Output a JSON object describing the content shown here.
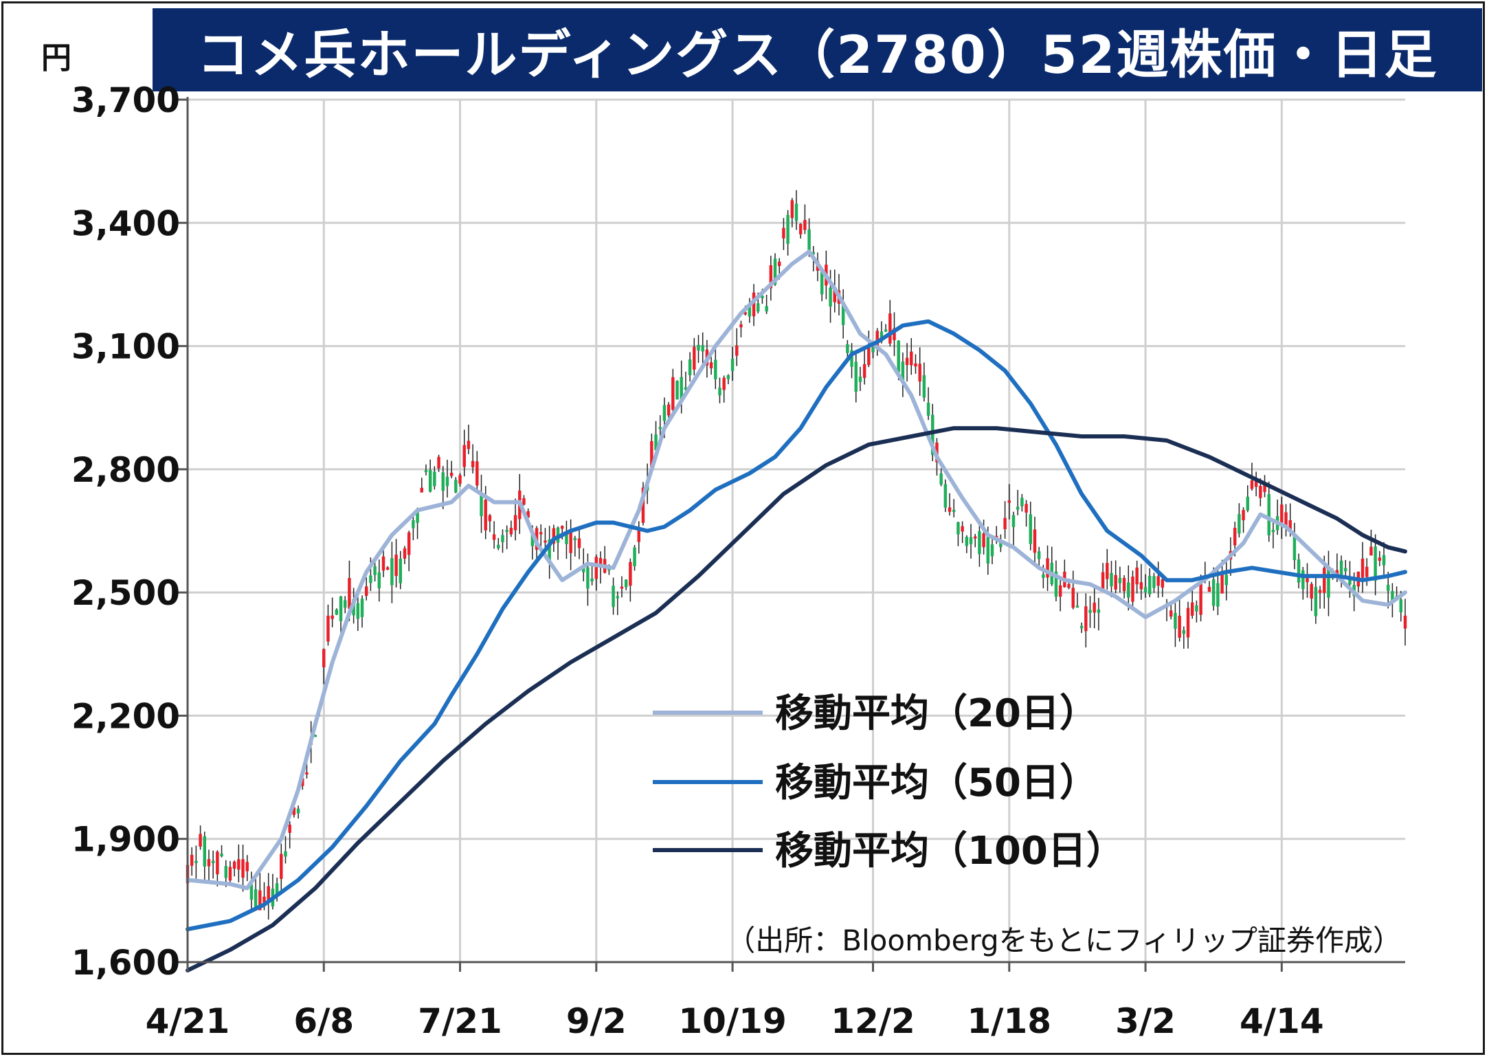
{
  "title": "コメ兵ホールディングス（2780）52週株価・日足",
  "unit": "円",
  "source_note": "（出所：Bloombergをもとにフィリップ証券作成）",
  "colors": {
    "title_bg": "#0a2a6c",
    "candle_up": "#e8202a",
    "candle_down": "#1fae5a",
    "ma20": "#9db4d8",
    "ma50": "#1f6fc0",
    "ma100": "#1b2f55",
    "grid": "#cfcfcf"
  },
  "chart_data": {
    "type": "candlestick",
    "ylim": [
      1600,
      3700
    ],
    "yticks": [
      1600,
      1900,
      2200,
      2500,
      2800,
      3100,
      3400,
      3700
    ],
    "ytick_labels": [
      "1,600",
      "1,900",
      "2,200",
      "2,500",
      "2,800",
      "3,100",
      "3,400",
      "3,700"
    ],
    "xticks": [
      0,
      32,
      64,
      96,
      128,
      161,
      193,
      225,
      257
    ],
    "xtick_labels": [
      "4/21",
      "6/8",
      "7/21",
      "9/2",
      "10/19",
      "12/2",
      "1/18",
      "3/2",
      "4/14"
    ],
    "legend_position": "center-right",
    "series": [
      {
        "name": "移動平均（20日）",
        "anchors": [
          [
            0,
            1800
          ],
          [
            10,
            1790
          ],
          [
            14,
            1780
          ],
          [
            22,
            1900
          ],
          [
            26,
            2020
          ],
          [
            30,
            2180
          ],
          [
            34,
            2330
          ],
          [
            38,
            2450
          ],
          [
            42,
            2550
          ],
          [
            48,
            2640
          ],
          [
            54,
            2700
          ],
          [
            62,
            2720
          ],
          [
            66,
            2760
          ],
          [
            72,
            2720
          ],
          [
            78,
            2720
          ],
          [
            82,
            2620
          ],
          [
            88,
            2530
          ],
          [
            94,
            2570
          ],
          [
            100,
            2560
          ],
          [
            106,
            2700
          ],
          [
            112,
            2900
          ],
          [
            118,
            3000
          ],
          [
            124,
            3100
          ],
          [
            130,
            3180
          ],
          [
            136,
            3240
          ],
          [
            142,
            3300
          ],
          [
            146,
            3330
          ],
          [
            152,
            3240
          ],
          [
            158,
            3130
          ],
          [
            164,
            3080
          ],
          [
            170,
            2980
          ],
          [
            176,
            2830
          ],
          [
            182,
            2730
          ],
          [
            188,
            2640
          ],
          [
            194,
            2610
          ],
          [
            200,
            2560
          ],
          [
            206,
            2530
          ],
          [
            212,
            2520
          ],
          [
            218,
            2490
          ],
          [
            225,
            2440
          ],
          [
            232,
            2480
          ],
          [
            240,
            2540
          ],
          [
            248,
            2620
          ],
          [
            252,
            2690
          ],
          [
            258,
            2660
          ],
          [
            264,
            2600
          ],
          [
            270,
            2540
          ],
          [
            276,
            2480
          ],
          [
            282,
            2470
          ],
          [
            286,
            2500
          ]
        ]
      },
      {
        "name": "移動平均（50日）",
        "anchors": [
          [
            0,
            1680
          ],
          [
            10,
            1700
          ],
          [
            18,
            1740
          ],
          [
            26,
            1800
          ],
          [
            34,
            1880
          ],
          [
            42,
            1980
          ],
          [
            50,
            2090
          ],
          [
            58,
            2180
          ],
          [
            62,
            2250
          ],
          [
            68,
            2350
          ],
          [
            74,
            2460
          ],
          [
            80,
            2550
          ],
          [
            86,
            2630
          ],
          [
            90,
            2650
          ],
          [
            96,
            2670
          ],
          [
            100,
            2670
          ],
          [
            104,
            2660
          ],
          [
            108,
            2650
          ],
          [
            112,
            2660
          ],
          [
            118,
            2700
          ],
          [
            124,
            2750
          ],
          [
            132,
            2790
          ],
          [
            138,
            2830
          ],
          [
            144,
            2900
          ],
          [
            150,
            3000
          ],
          [
            156,
            3080
          ],
          [
            162,
            3110
          ],
          [
            168,
            3150
          ],
          [
            174,
            3160
          ],
          [
            180,
            3130
          ],
          [
            186,
            3090
          ],
          [
            192,
            3040
          ],
          [
            198,
            2960
          ],
          [
            204,
            2860
          ],
          [
            210,
            2740
          ],
          [
            216,
            2650
          ],
          [
            224,
            2590
          ],
          [
            230,
            2530
          ],
          [
            236,
            2530
          ],
          [
            244,
            2550
          ],
          [
            250,
            2560
          ],
          [
            256,
            2550
          ],
          [
            262,
            2540
          ],
          [
            270,
            2540
          ],
          [
            276,
            2530
          ],
          [
            282,
            2540
          ],
          [
            286,
            2550
          ]
        ]
      },
      {
        "name": "移動平均（100日）",
        "anchors": [
          [
            0,
            1580
          ],
          [
            10,
            1630
          ],
          [
            20,
            1690
          ],
          [
            30,
            1780
          ],
          [
            40,
            1890
          ],
          [
            50,
            1990
          ],
          [
            60,
            2090
          ],
          [
            70,
            2180
          ],
          [
            80,
            2260
          ],
          [
            90,
            2330
          ],
          [
            100,
            2390
          ],
          [
            110,
            2450
          ],
          [
            120,
            2540
          ],
          [
            130,
            2640
          ],
          [
            140,
            2740
          ],
          [
            150,
            2810
          ],
          [
            160,
            2860
          ],
          [
            170,
            2880
          ],
          [
            180,
            2900
          ],
          [
            190,
            2900
          ],
          [
            200,
            2890
          ],
          [
            210,
            2880
          ],
          [
            220,
            2880
          ],
          [
            230,
            2870
          ],
          [
            240,
            2830
          ],
          [
            250,
            2780
          ],
          [
            260,
            2730
          ],
          [
            270,
            2680
          ],
          [
            276,
            2640
          ],
          [
            282,
            2610
          ],
          [
            286,
            2600
          ]
        ]
      }
    ]
  }
}
